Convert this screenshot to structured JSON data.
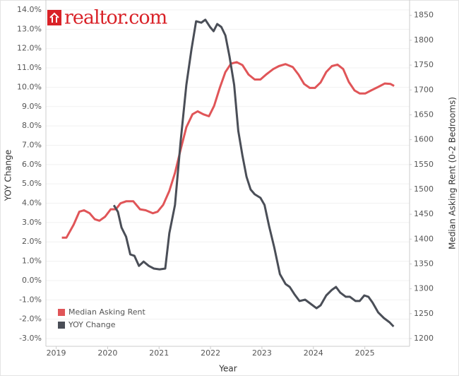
{
  "logo": "realtor.com",
  "chart_data": {
    "type": "line",
    "x_label": "Year",
    "y_label": "YOY Change",
    "y2_label": "Median Asking Rent (0-2 Bedrooms)",
    "xlim": [
      2018.8,
      2025.87
    ],
    "xticks": [
      2019,
      2020,
      2021,
      2022,
      2023,
      2024,
      2025
    ],
    "ylim": [
      -3,
      14
    ],
    "yticks": [
      {
        "value": 14,
        "label": "14.0%"
      },
      {
        "value": 13,
        "label": "13.0%"
      },
      {
        "value": 12,
        "label": "12.0%"
      },
      {
        "value": 11,
        "label": "11.0%"
      },
      {
        "value": 10,
        "label": "10.0%"
      },
      {
        "value": 9,
        "label": "9.0%"
      },
      {
        "value": 8,
        "label": "8.0%"
      },
      {
        "value": 7,
        "label": "7.0%"
      },
      {
        "value": 6,
        "label": "6.0%"
      },
      {
        "value": 5,
        "label": "5.0%"
      },
      {
        "value": 4,
        "label": "4.0%"
      },
      {
        "value": 3,
        "label": "3.0%"
      },
      {
        "value": 2,
        "label": "2.0%"
      },
      {
        "value": 1,
        "label": "1.0%"
      },
      {
        "value": 0,
        "label": "0.0%"
      },
      {
        "value": -1,
        "label": "-1.0%"
      },
      {
        "value": -2,
        "label": "-2.0%"
      },
      {
        "value": -3,
        "label": "-3.0%"
      }
    ],
    "y2lim": [
      1200,
      1861
    ],
    "y2ticks": [
      1200,
      1250,
      1300,
      1350,
      1400,
      1450,
      1500,
      1550,
      1600,
      1650,
      1700,
      1750,
      1800,
      1850
    ],
    "grid": true,
    "legend": "lower left",
    "series": [
      {
        "name": "Median Asking Rent",
        "color": "#e05558",
        "axis": "y2",
        "x": [
          2019.11,
          2019.2,
          2019.34,
          2019.45,
          2019.54,
          2019.65,
          2019.75,
          2019.84,
          2019.95,
          2020.06,
          2020.16,
          2020.25,
          2020.36,
          2020.5,
          2020.63,
          2020.74,
          2020.88,
          2020.97,
          2021.08,
          2021.2,
          2021.31,
          2021.42,
          2021.53,
          2021.65,
          2021.75,
          2021.86,
          2021.97,
          2022.07,
          2022.18,
          2022.29,
          2022.4,
          2022.51,
          2022.62,
          2022.74,
          2022.86,
          2022.97,
          2023.08,
          2023.22,
          2023.33,
          2023.46,
          2023.6,
          2023.71,
          2023.82,
          2023.93,
          2024.03,
          2024.14,
          2024.25,
          2024.36,
          2024.47,
          2024.58,
          2024.69,
          2024.8,
          2024.9,
          2025.01,
          2025.12,
          2025.26,
          2025.39,
          2025.5,
          2025.57
        ],
        "values": [
          1403,
          1403,
          1429,
          1455,
          1458,
          1452,
          1440,
          1437,
          1445,
          1460,
          1460,
          1472,
          1476,
          1476,
          1460,
          1458,
          1452,
          1455,
          1469,
          1497,
          1533,
          1580,
          1625,
          1651,
          1657,
          1651,
          1647,
          1668,
          1704,
          1736,
          1753,
          1756,
          1750,
          1731,
          1721,
          1721,
          1731,
          1742,
          1748,
          1752,
          1746,
          1731,
          1712,
          1704,
          1704,
          1715,
          1736,
          1748,
          1751,
          1742,
          1716,
          1699,
          1693,
          1693,
          1699,
          1706,
          1713,
          1712,
          1708
        ]
      },
      {
        "name": "YOY Change",
        "color": "#4a4e57",
        "axis": "y",
        "x": [
          2020.12,
          2020.2,
          2020.27,
          2020.36,
          2020.44,
          2020.52,
          2020.61,
          2020.7,
          2020.8,
          2020.9,
          2021.01,
          2021.12,
          2021.2,
          2021.31,
          2021.42,
          2021.53,
          2021.63,
          2021.72,
          2021.82,
          2021.9,
          2021.99,
          2022.06,
          2022.13,
          2022.21,
          2022.29,
          2022.37,
          2022.46,
          2022.54,
          2022.62,
          2022.7,
          2022.78,
          2022.86,
          2022.97,
          2023.05,
          2023.14,
          2023.24,
          2023.35,
          2023.46,
          2023.54,
          2023.63,
          2023.73,
          2023.84,
          2023.95,
          2024.06,
          2024.14,
          2024.25,
          2024.36,
          2024.44,
          2024.52,
          2024.63,
          2024.71,
          2024.82,
          2024.9,
          2024.99,
          2025.07,
          2025.15,
          2025.26,
          2025.37,
          2025.48,
          2025.56
        ],
        "values": [
          3.9,
          3.55,
          2.74,
          2.26,
          1.35,
          1.28,
          0.76,
          0.98,
          0.76,
          0.62,
          0.58,
          0.62,
          2.45,
          3.91,
          7.2,
          10.12,
          11.95,
          13.41,
          13.34,
          13.49,
          13.12,
          12.9,
          13.27,
          13.12,
          12.68,
          11.59,
          10.12,
          7.75,
          6.47,
          5.37,
          4.71,
          4.46,
          4.28,
          3.91,
          2.81,
          1.71,
          0.33,
          -0.18,
          -0.33,
          -0.7,
          -1.06,
          -0.99,
          -1.21,
          -1.43,
          -1.28,
          -0.77,
          -0.48,
          -0.33,
          -0.62,
          -0.84,
          -0.84,
          -1.06,
          -1.06,
          -0.77,
          -0.84,
          -1.14,
          -1.65,
          -1.94,
          -2.16,
          -2.38
        ]
      }
    ]
  }
}
